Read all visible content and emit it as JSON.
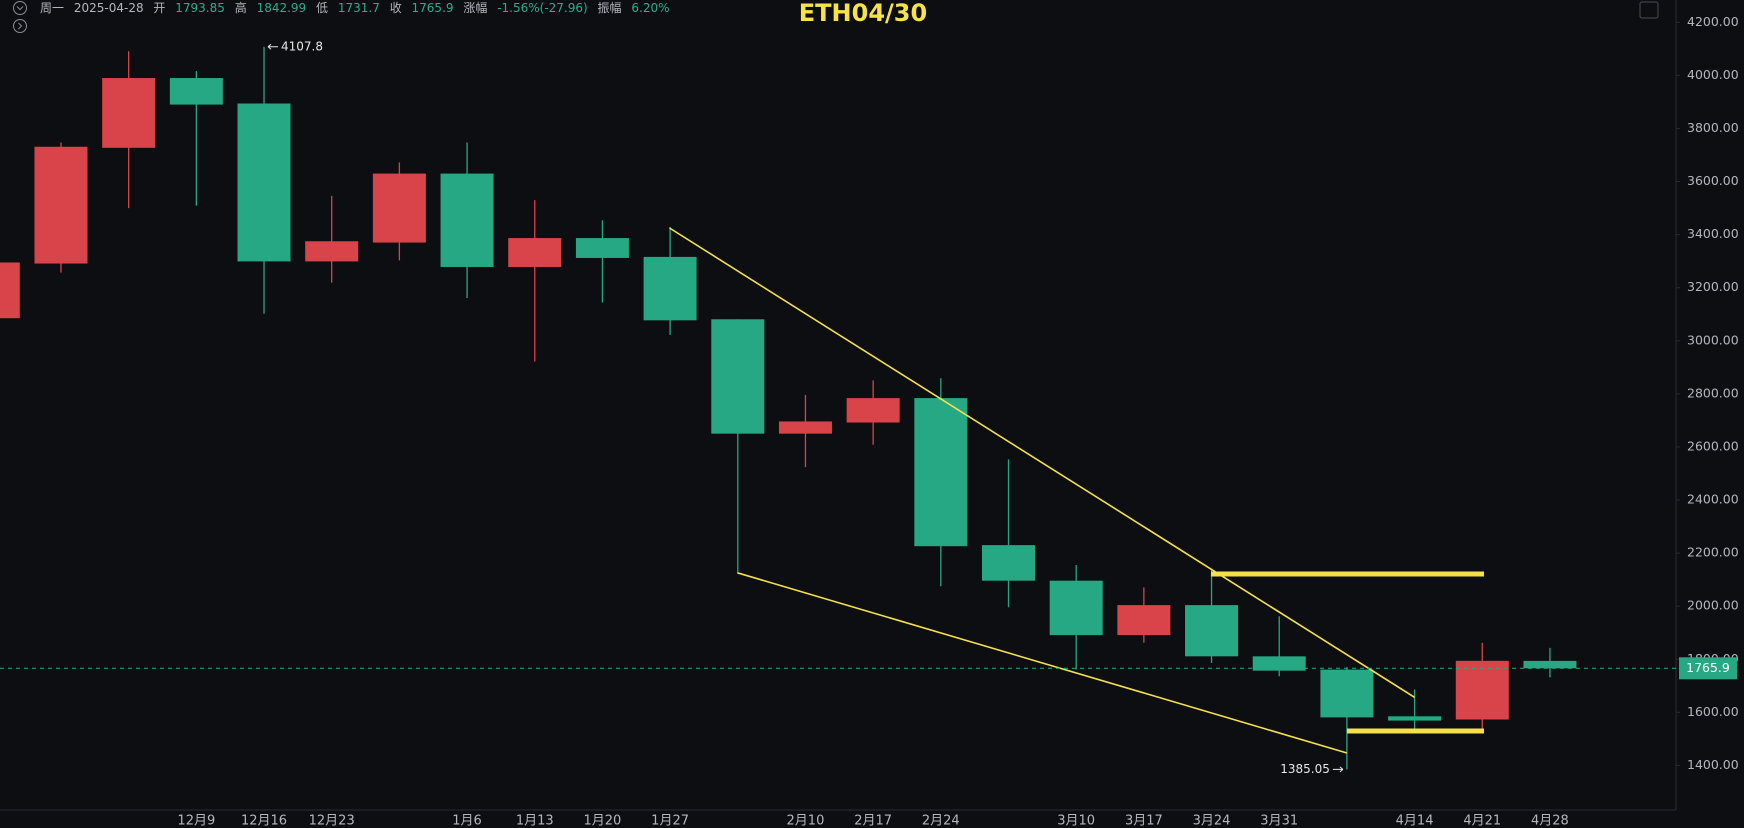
{
  "header": {
    "weekday": "周一",
    "date": "2025-04-28",
    "open_label": "开",
    "high_label": "高",
    "low_label": "低",
    "close_label": "收",
    "change_label": "涨幅",
    "change": "-1.56%(-27.96)",
    "amplitude_label": "振幅",
    "amplitude": "6.20%"
  },
  "chart_data": {
    "type": "candlestick",
    "title": "ETH04/30",
    "categories": [
      null,
      null,
      null,
      "12月9",
      "12月16",
      "12月23",
      null,
      "1月6",
      "1月13",
      "1月20",
      "1月27",
      null,
      "2月10",
      "2月17",
      "2月24",
      null,
      "3月10",
      "3月17",
      "3月24",
      "3月31",
      null,
      "4月14",
      "4月21",
      "4月28"
    ],
    "open": [
      3085,
      3291,
      3727,
      3990,
      3894,
      3299,
      3370,
      3630,
      3278,
      3387,
      3316,
      3081,
      2650,
      2692,
      2784,
      2230,
      2096,
      1891,
      2004,
      1811,
      1761,
      1585,
      1573,
      1793.85
    ],
    "high": [
      3300,
      3747,
      4091,
      4016,
      4107.8,
      3546,
      3672,
      3747,
      3530,
      3454,
      3429,
      3081,
      2796,
      2851,
      2859,
      2553,
      2155,
      2071,
      2142,
      1962,
      1770,
      1686,
      1862,
      1842.99
    ],
    "low": [
      3080,
      3257,
      3500,
      3509,
      3102,
      3219,
      3303,
      3161,
      2922,
      3144,
      3022,
      2126,
      2524,
      2608,
      2075,
      1996,
      1761,
      1862,
      1786,
      1736,
      1385.05,
      1539,
      1539,
      1731.7
    ],
    "close": [
      3295,
      3731,
      3990,
      3890,
      3299,
      3375,
      3630,
      3278,
      3387,
      3312,
      3077,
      2650,
      2696,
      2784,
      2226,
      2096,
      1891,
      2004,
      1811,
      1757,
      1581,
      1569,
      1794,
      1765.9
    ],
    "up_color": "#d9434a",
    "down_color": "#26a884",
    "ylim": [
      1232,
      4284
    ],
    "yticks": [
      {
        "value": 1400,
        "label": "1400.00"
      },
      {
        "value": 1600,
        "label": "1600.00"
      },
      {
        "value": 1800,
        "label": "1800.00"
      },
      {
        "value": 2000,
        "label": "2000.00"
      },
      {
        "value": 2200,
        "label": "2200.00"
      },
      {
        "value": 2400,
        "label": "2400.00"
      },
      {
        "value": 2600,
        "label": "2600.00"
      },
      {
        "value": 2800,
        "label": "2800.00"
      },
      {
        "value": 3000,
        "label": "3000.00"
      },
      {
        "value": 3200,
        "label": "3200.00"
      },
      {
        "value": 3400,
        "label": "3400.00"
      },
      {
        "value": 3600,
        "label": "3600.00"
      },
      {
        "value": 3800,
        "label": "3800.00"
      },
      {
        "value": 4000,
        "label": "4000.00"
      },
      {
        "value": 4200,
        "label": "4200.00"
      }
    ]
  }
}
